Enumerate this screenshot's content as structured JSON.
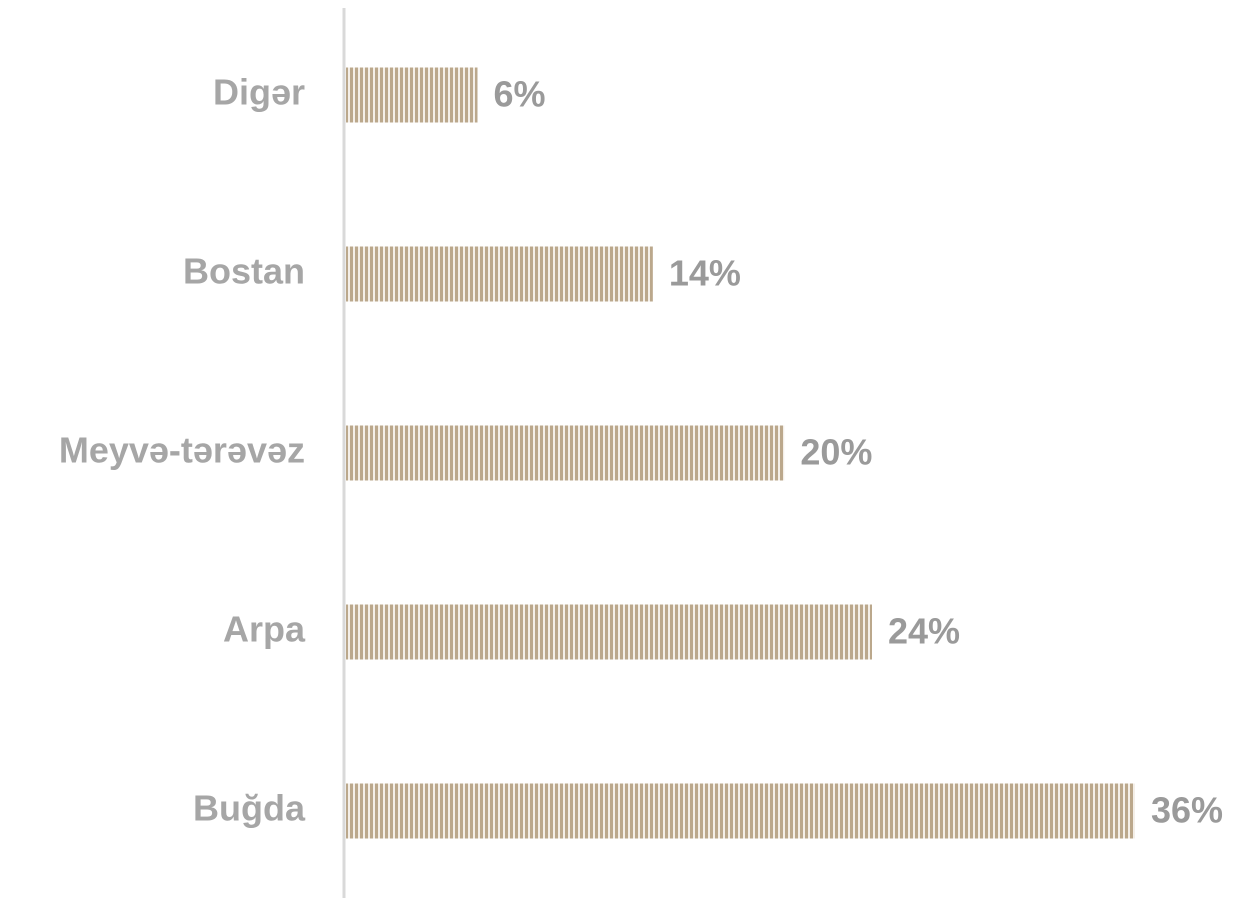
{
  "chart_data": {
    "type": "hbar",
    "categories": [
      "Digər",
      "Bostan",
      "Meyvə-tərəvəz",
      "Arpa",
      "Buğda"
    ],
    "values": [
      6,
      14,
      20,
      24,
      36
    ],
    "value_labels": [
      "6%",
      "14%",
      "20%",
      "24%",
      "36%"
    ],
    "color": "#bba88c"
  }
}
